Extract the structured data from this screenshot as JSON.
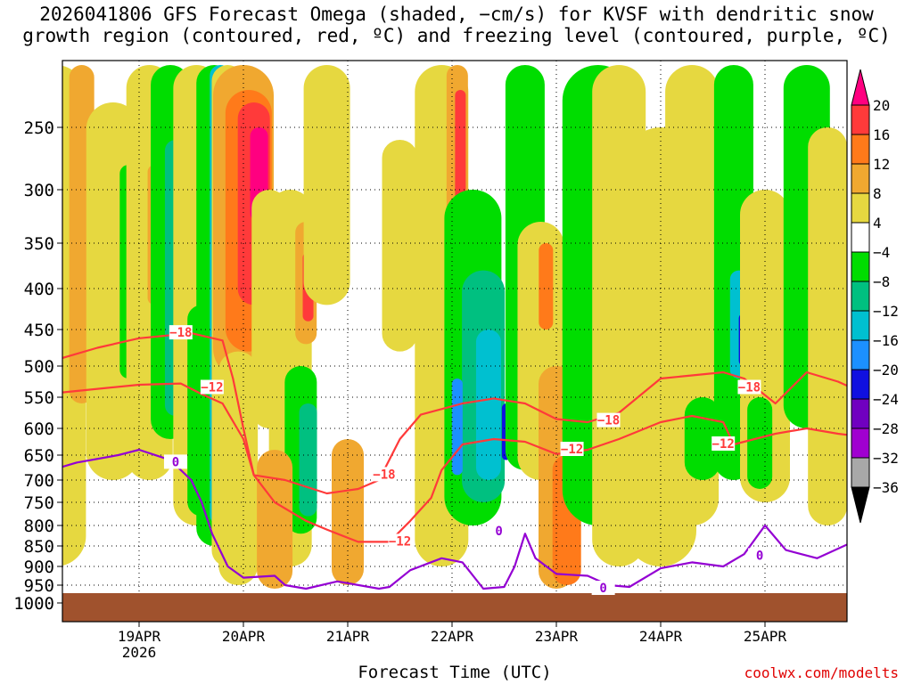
{
  "title_line1": "2026041806 GFS Forecast Omega (shaded, −cm/s) for KVSF with dendritic snow",
  "title_line2": "growth region (contoured, red, ºC) and freezing level (contoured, purple, ºC)",
  "xlabel": "Forecast Time (UTC)",
  "credit": "coolwx.com/modelts",
  "colors": {
    "ground": "#a0522d",
    "red_contour": "#ff3a3a",
    "purple_contour": "#9400d3"
  },
  "chart_data": {
    "type": "heatmap",
    "title": "2026041806 GFS Forecast Omega (shaded, −cm/s) for KVSF with dendritic snow growth region (contoured, red, ºC) and freezing level (contoured, purple, ºC)",
    "xlabel": "Forecast Time (UTC)",
    "ylabel": "",
    "y_ticks": [
      "250",
      "300",
      "350",
      "400",
      "450",
      "500",
      "550",
      "600",
      "650",
      "700",
      "750",
      "800",
      "850",
      "900",
      "950",
      "1000"
    ],
    "x_ticks": [
      "19APR",
      "20APR",
      "21APR",
      "22APR",
      "23APR",
      "24APR",
      "25APR"
    ],
    "x_year": "2026",
    "colorbar": {
      "levels": [
        "20",
        "16",
        "12",
        "8",
        "4",
        "−4",
        "−8",
        "−12",
        "−16",
        "−20",
        "−24",
        "−28",
        "−32",
        "−36"
      ],
      "colors": [
        "#ff0080",
        "#ff3a3a",
        "#ff7a1a",
        "#f0a830",
        "#e6d840",
        "#ffffff",
        "#00dd00",
        "#00c080",
        "#00c0d0",
        "#1c90ff",
        "#1010e0",
        "#7000c0",
        "#a000d0",
        "#a8a8a8",
        "#000000"
      ]
    },
    "contours": {
      "dendritic_minus12_label": "−12",
      "dendritic_minus18_label": "−18",
      "freezing_level_label": "0"
    }
  }
}
